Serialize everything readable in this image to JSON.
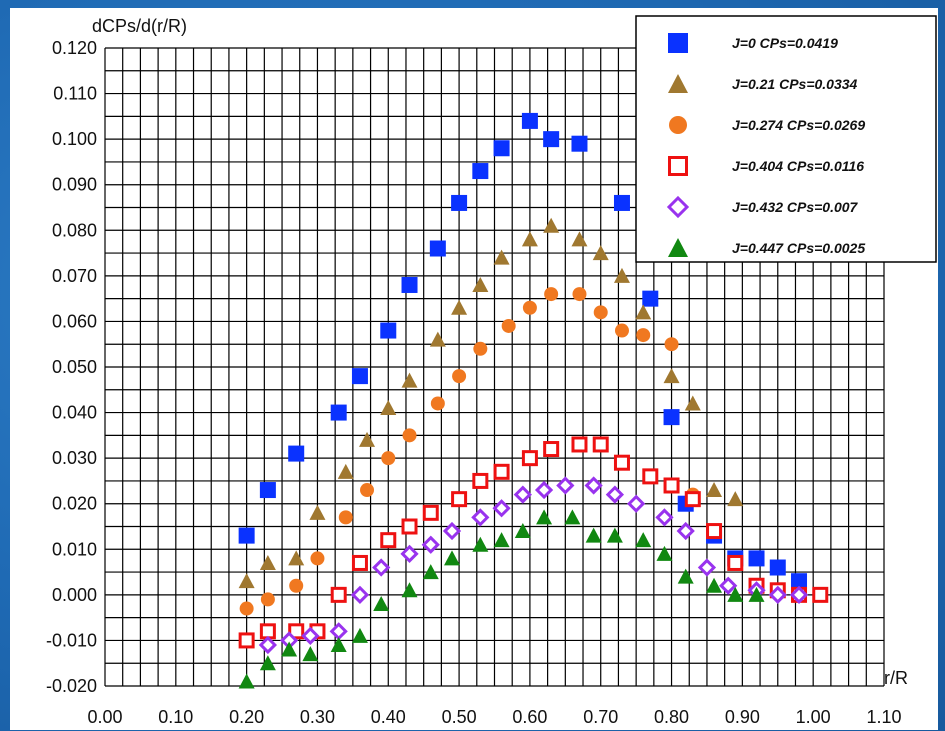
{
  "colors": {
    "background": "#1f6ab4",
    "panel": "#ffffff",
    "grid": "#000000"
  },
  "chart_data": {
    "type": "scatter",
    "title": "",
    "ylabel": "dCPs/d(r/R)",
    "xlabel": "r/R",
    "xlim": [
      0.0,
      1.1
    ],
    "ylim": [
      -0.02,
      0.12
    ],
    "grid": true,
    "legend_position": "top-right",
    "x_ticks": [
      "0.00",
      "0.10",
      "0.20",
      "0.30",
      "0.40",
      "0.50",
      "0.60",
      "0.70",
      "0.80",
      "0.90",
      "1.00",
      "1.10"
    ],
    "y_ticks": [
      "-0.020",
      "-0.010",
      "0.000",
      "0.010",
      "0.020",
      "0.030",
      "0.040",
      "0.050",
      "0.060",
      "0.070",
      "0.080",
      "0.090",
      "0.100",
      "0.110",
      "0.120"
    ],
    "series": [
      {
        "name": "J=0      CPs=0.0419",
        "color": "#0a32ff",
        "marker": "square",
        "x": [
          0.2,
          0.23,
          0.27,
          0.33,
          0.36,
          0.4,
          0.43,
          0.47,
          0.5,
          0.53,
          0.56,
          0.6,
          0.63,
          0.67,
          0.73,
          0.77,
          0.8,
          0.82,
          0.86,
          0.89,
          0.92,
          0.95,
          0.98
        ],
        "y": [
          0.013,
          0.023,
          0.031,
          0.04,
          0.048,
          0.058,
          0.068,
          0.076,
          0.086,
          0.093,
          0.098,
          0.104,
          0.1,
          0.099,
          0.086,
          0.065,
          0.039,
          0.02,
          0.013,
          0.008,
          0.008,
          0.006,
          0.003
        ]
      },
      {
        "name": "J=0.21  CPs=0.0334",
        "color": "#a07830",
        "marker": "triangle",
        "x": [
          0.2,
          0.23,
          0.27,
          0.3,
          0.34,
          0.37,
          0.4,
          0.43,
          0.47,
          0.5,
          0.53,
          0.56,
          0.6,
          0.63,
          0.67,
          0.7,
          0.73,
          0.76,
          0.8,
          0.83,
          0.86,
          0.89
        ],
        "y": [
          0.003,
          0.007,
          0.008,
          0.018,
          0.027,
          0.034,
          0.041,
          0.047,
          0.056,
          0.063,
          0.068,
          0.074,
          0.078,
          0.081,
          0.078,
          0.075,
          0.07,
          0.062,
          0.048,
          0.042,
          0.023,
          0.021
        ]
      },
      {
        "name": "J=0.274 CPs=0.0269",
        "color": "#f07820",
        "marker": "circle",
        "x": [
          0.2,
          0.23,
          0.27,
          0.3,
          0.34,
          0.37,
          0.4,
          0.43,
          0.47,
          0.5,
          0.53,
          0.57,
          0.6,
          0.63,
          0.67,
          0.7,
          0.73,
          0.76,
          0.8,
          0.83
        ],
        "y": [
          -0.003,
          -0.001,
          0.002,
          0.008,
          0.017,
          0.023,
          0.03,
          0.035,
          0.042,
          0.048,
          0.054,
          0.059,
          0.063,
          0.066,
          0.066,
          0.062,
          0.058,
          0.057,
          0.055,
          0.022
        ]
      },
      {
        "name": "J=0.404 CPs=0.0116",
        "color": "#ee1111",
        "marker": "open-square",
        "x": [
          0.2,
          0.23,
          0.27,
          0.3,
          0.33,
          0.36,
          0.4,
          0.43,
          0.46,
          0.5,
          0.53,
          0.56,
          0.6,
          0.63,
          0.67,
          0.7,
          0.73,
          0.77,
          0.8,
          0.83,
          0.86,
          0.89,
          0.92,
          0.95,
          0.98,
          1.01
        ],
        "y": [
          -0.01,
          -0.008,
          -0.008,
          -0.008,
          0.0,
          0.007,
          0.012,
          0.015,
          0.018,
          0.021,
          0.025,
          0.027,
          0.03,
          0.032,
          0.033,
          0.033,
          0.029,
          0.026,
          0.024,
          0.021,
          0.014,
          0.007,
          0.002,
          0.001,
          0.0,
          0.0
        ]
      },
      {
        "name": "J=0.432 CPs=0.007",
        "color": "#9933ee",
        "marker": "diamond",
        "x": [
          0.23,
          0.26,
          0.29,
          0.33,
          0.36,
          0.39,
          0.43,
          0.46,
          0.49,
          0.53,
          0.56,
          0.59,
          0.62,
          0.65,
          0.69,
          0.72,
          0.75,
          0.79,
          0.82,
          0.85,
          0.88,
          0.92,
          0.95,
          0.98
        ],
        "y": [
          -0.011,
          -0.01,
          -0.009,
          -0.008,
          0.0,
          0.006,
          0.009,
          0.011,
          0.014,
          0.017,
          0.019,
          0.022,
          0.023,
          0.024,
          0.024,
          0.022,
          0.02,
          0.017,
          0.014,
          0.006,
          0.002,
          0.001,
          0.0,
          0.0
        ]
      },
      {
        "name": "J=0.447 CPs=0.0025",
        "color": "#118811",
        "marker": "triangle",
        "x": [
          0.2,
          0.23,
          0.26,
          0.29,
          0.33,
          0.36,
          0.39,
          0.43,
          0.46,
          0.49,
          0.53,
          0.56,
          0.59,
          0.62,
          0.66,
          0.69,
          0.72,
          0.76,
          0.79,
          0.82,
          0.86,
          0.89,
          0.92
        ],
        "y": [
          -0.019,
          -0.015,
          -0.012,
          -0.013,
          -0.011,
          -0.009,
          -0.002,
          0.001,
          0.005,
          0.008,
          0.011,
          0.012,
          0.014,
          0.017,
          0.017,
          0.013,
          0.013,
          0.012,
          0.009,
          0.004,
          0.002,
          0.0,
          0.0
        ]
      }
    ]
  }
}
